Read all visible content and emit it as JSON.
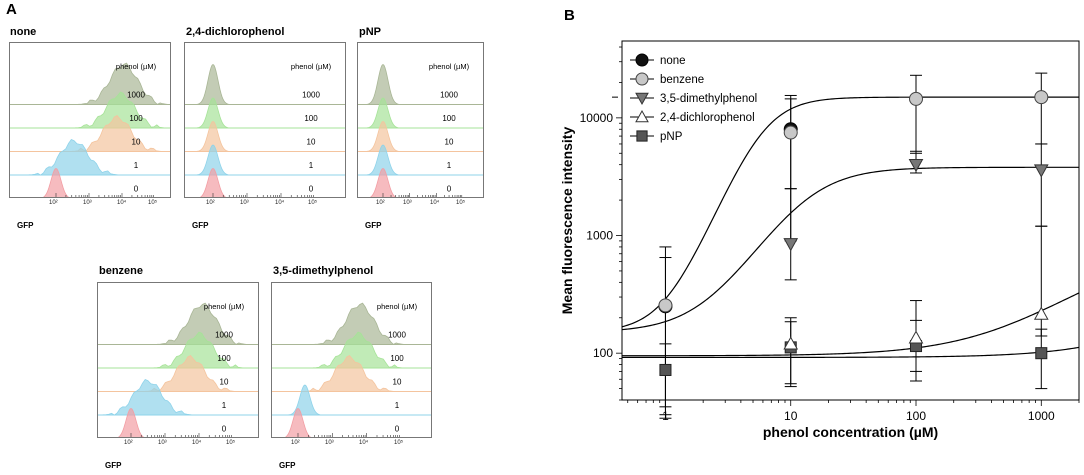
{
  "panel_a": {
    "label": "A",
    "legend_header": "phenol (µM)",
    "x_axis_label": "GFP",
    "x_ticks": [
      "10²",
      "10³",
      "10⁴",
      "10⁵"
    ],
    "concentrations": [
      "1000",
      "100",
      "10",
      "1",
      "0"
    ],
    "histogram_titles": [
      "none",
      "2,4-dichlorophenol",
      "pNP",
      "benzene",
      "3,5-dimethylphenol"
    ],
    "colors": {
      "c1000": "#a9b696",
      "c100": "#a6e398",
      "c10": "#f4c49e",
      "c1": "#8fd3ea",
      "c0": "#f29ea4"
    },
    "peak_positions_log10_gfp": {
      "none": [
        4.05,
        3.95,
        3.85,
        2.55,
        2.0
      ],
      "dcp": [
        2.0,
        2.0,
        2.0,
        2.0,
        2.0
      ],
      "pnp": [
        2.0,
        2.0,
        2.0,
        2.0,
        2.0
      ],
      "benzene": [
        4.1,
        4.0,
        3.75,
        2.5,
        2.0
      ],
      "dmp": [
        3.8,
        3.75,
        3.5,
        2.2,
        2.0
      ]
    }
  },
  "chart_data": {
    "type": "scatter",
    "panel_label": "B",
    "xlabel": "phenol concentration (µM)",
    "ylabel": "Mean fluorescence intensity",
    "x_scale": "log",
    "y_scale": "log",
    "xlim": [
      0.45,
      2000
    ],
    "ylim": [
      40,
      45000
    ],
    "x_ticks": [
      "1",
      "10",
      "100",
      "1000"
    ],
    "x_tick_values": [
      1,
      10,
      100,
      1000
    ],
    "y_ticks": [
      "100",
      "1000",
      "10000"
    ],
    "y_tick_values": [
      100,
      1000,
      10000
    ],
    "legend_position": "top-left",
    "series": [
      {
        "name": "none",
        "marker": "circle-filled",
        "x": [
          1,
          10
        ],
        "y": [
          250,
          8000
        ],
        "err_up": [
          800,
          15500
        ],
        "err_down": [
          30,
          900
        ]
      },
      {
        "name": "benzene",
        "marker": "circle-gray",
        "x": [
          1,
          10,
          100,
          1000
        ],
        "y": [
          255,
          7500,
          14500,
          15000
        ],
        "err_up": [
          650,
          14500,
          23000,
          24000
        ],
        "err_down": [
          35,
          2500,
          5000,
          6000
        ]
      },
      {
        "name": "3,5-dimethylphenol",
        "marker": "triangle-down",
        "x": [
          10,
          100,
          1000
        ],
        "y": [
          850,
          4000,
          3600
        ],
        "err_up": [
          2500,
          5200,
          6000
        ],
        "err_down": [
          420,
          3400,
          1200
        ]
      },
      {
        "name": "2,4-dichlorophenol",
        "marker": "triangle-up-open",
        "x": [
          10,
          100,
          1000
        ],
        "y": [
          120,
          135,
          215
        ],
        "err_up": [
          200,
          280,
          1200
        ],
        "err_down": [
          55,
          70,
          140
        ]
      },
      {
        "name": "pNP",
        "marker": "square",
        "x": [
          1,
          10,
          100,
          1000
        ],
        "y": [
          72,
          112,
          115,
          100
        ],
        "err_up": [
          120,
          185,
          190,
          160
        ],
        "err_down": [
          28,
          52,
          58,
          50
        ]
      }
    ],
    "fit_curves": [
      {
        "name": "none / benzene fit",
        "type": "hill",
        "base": 150,
        "top": 15000,
        "ec50": 6,
        "n": 2.6
      },
      {
        "name": "3,5-dimethylphenol fit",
        "type": "hill",
        "base": 150,
        "top": 3800,
        "ec50": 13,
        "n": 1.8
      },
      {
        "name": "2,4-dichlorophenol fit",
        "type": "hill",
        "base": 95,
        "top": 900,
        "ec50": 5000,
        "n": 1.0
      },
      {
        "name": "pNP fit",
        "type": "linear",
        "base": 92,
        "slope": 0.01
      }
    ]
  }
}
